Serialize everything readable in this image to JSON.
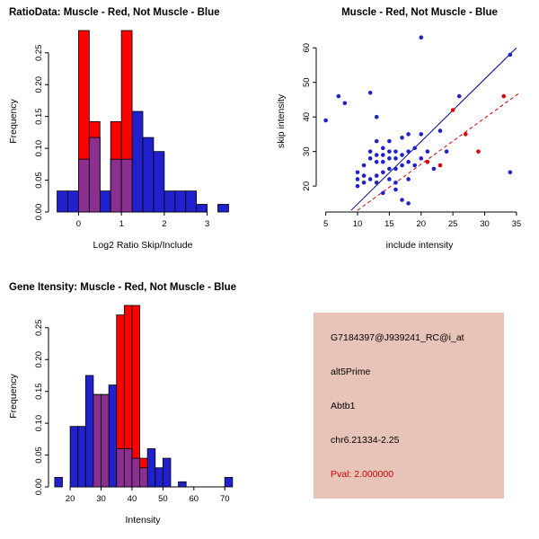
{
  "page": {
    "background": "#ffffff"
  },
  "chart_data": [
    {
      "type": "histogram",
      "title": "RatioData: Muscle - Red, Not Muscle - Blue",
      "title_align": "left",
      "xlabel": "Log2 Ratio Skip/Include",
      "ylabel": "Frequency",
      "xlim": [
        -0.7,
        3.7
      ],
      "ylim": [
        0,
        0.285
      ],
      "xticks": [
        0,
        1,
        2,
        3
      ],
      "yticks": [
        0,
        0.05,
        0.1,
        0.15,
        0.2,
        0.25
      ],
      "xtick_dec": 0,
      "ytick_dec": 2,
      "bin_start": -0.5,
      "bin_width": 0.25,
      "overlap_color": "#8B3090",
      "grid": false,
      "legend": "none",
      "series": [
        {
          "name": "Not Muscle",
          "color": "#2020CC",
          "values": [
            0.033,
            0.033,
            0.083,
            0.117,
            0.033,
            0.083,
            0.083,
            0.158,
            0.117,
            0.095,
            0.033,
            0.033,
            0.033,
            0.012,
            0,
            0.012
          ]
        },
        {
          "name": "Muscle",
          "color": "#FF0000",
          "values": [
            0,
            0,
            0.285,
            0.142,
            0,
            0.142,
            0.285,
            0,
            0,
            0,
            0,
            0,
            0,
            0,
            0,
            0
          ]
        }
      ]
    },
    {
      "type": "scatter",
      "title": "Muscle - Red, Not Muscle - Blue",
      "title_align": "center",
      "xlabel": "include intensity",
      "ylabel": "skip intensity",
      "xlim": [
        3.5,
        36
      ],
      "ylim": [
        12.5,
        65
      ],
      "xticks": [
        5,
        10,
        15,
        20,
        25,
        30,
        35
      ],
      "yticks": [
        20,
        30,
        40,
        50,
        60
      ],
      "xtick_dec": 0,
      "ytick_dec": 0,
      "grid": false,
      "legend": "none",
      "series": [
        {
          "name": "Not Muscle",
          "color": "#2020CC",
          "points": [
            [
              5,
              39
            ],
            [
              7,
              46
            ],
            [
              8,
              44
            ],
            [
              12,
              47
            ],
            [
              13,
              40
            ],
            [
              20,
              63
            ],
            [
              26,
              46
            ],
            [
              34,
              58
            ],
            [
              34,
              24
            ],
            [
              10,
              24
            ],
            [
              10,
              22
            ],
            [
              10,
              20
            ],
            [
              11,
              26
            ],
            [
              11,
              23
            ],
            [
              11,
              21
            ],
            [
              12,
              30
            ],
            [
              12,
              28
            ],
            [
              12,
              22
            ],
            [
              13,
              33
            ],
            [
              13,
              29
            ],
            [
              13,
              27
            ],
            [
              13,
              23
            ],
            [
              13,
              21
            ],
            [
              14,
              31
            ],
            [
              14,
              29
            ],
            [
              14,
              27
            ],
            [
              14,
              24
            ],
            [
              14,
              18
            ],
            [
              15,
              33
            ],
            [
              15,
              30
            ],
            [
              15,
              28
            ],
            [
              15,
              25
            ],
            [
              15,
              22
            ],
            [
              16,
              30
            ],
            [
              16,
              28
            ],
            [
              16,
              25
            ],
            [
              16,
              21
            ],
            [
              16,
              19
            ],
            [
              17,
              34
            ],
            [
              17,
              29
            ],
            [
              17,
              26
            ],
            [
              17,
              16
            ],
            [
              18,
              35
            ],
            [
              18,
              30
            ],
            [
              18,
              27
            ],
            [
              18,
              22
            ],
            [
              18,
              15
            ],
            [
              19,
              31
            ],
            [
              19,
              26
            ],
            [
              20,
              35
            ],
            [
              20,
              28
            ],
            [
              21,
              30
            ],
            [
              22,
              25
            ],
            [
              23,
              36
            ],
            [
              24,
              30
            ]
          ]
        },
        {
          "name": "Muscle",
          "color": "#DD0000",
          "points": [
            [
              21,
              27
            ],
            [
              23,
              26
            ],
            [
              25,
              42
            ],
            [
              27,
              35
            ],
            [
              29,
              30
            ],
            [
              33,
              46
            ]
          ]
        }
      ],
      "lines": [
        {
          "name": "not-muscle-fit",
          "color": "#00008B",
          "dash": false,
          "x1": 9,
          "y1": 13,
          "x2": 35,
          "y2": 60
        },
        {
          "name": "muscle-fit",
          "color": "#CC0000",
          "dash": true,
          "x1": 10,
          "y1": 13,
          "x2": 35.5,
          "y2": 47
        }
      ]
    },
    {
      "type": "histogram",
      "title": "Gene Itensity: Muscle - Red, Not Muscle - Blue",
      "title_align": "left",
      "xlabel": "Intensity",
      "ylabel": "Frequency",
      "xlim": [
        13,
        74
      ],
      "ylim": [
        0,
        0.285
      ],
      "xticks": [
        20,
        30,
        40,
        50,
        60,
        70
      ],
      "yticks": [
        0,
        0.05,
        0.1,
        0.15,
        0.2,
        0.25
      ],
      "xtick_dec": 0,
      "ytick_dec": 2,
      "bin_start": 15,
      "bin_width": 2.5,
      "overlap_color": "#8B3090",
      "grid": false,
      "legend": "none",
      "series": [
        {
          "name": "Not Muscle",
          "color": "#2020CC",
          "values": [
            0.015,
            0,
            0.095,
            0.095,
            0.175,
            0.145,
            0.145,
            0.16,
            0.06,
            0.06,
            0.045,
            0.03,
            0.06,
            0.03,
            0.045,
            0,
            0.008,
            0,
            0,
            0,
            0,
            0,
            0.015
          ]
        },
        {
          "name": "Muscle",
          "color": "#FF0000",
          "values": [
            0,
            0,
            0,
            0,
            0,
            0.145,
            0.145,
            0,
            0.27,
            0.285,
            0.285,
            0.045,
            0,
            0,
            0,
            0,
            0,
            0,
            0,
            0,
            0,
            0,
            0
          ]
        }
      ]
    }
  ],
  "info_panel": {
    "background": "#E8C4B8",
    "lines": [
      {
        "text": "G7184397@J939241_RC@i_at",
        "color": "#000000"
      },
      {
        "text": "alt5Prime",
        "color": "#000000"
      },
      {
        "text": "Abtb1",
        "color": "#000000"
      },
      {
        "text": "chr6.21334-2.25",
        "color": "#000000"
      },
      {
        "text": "Pval: 2.000000",
        "color": "#CC0000"
      }
    ]
  }
}
